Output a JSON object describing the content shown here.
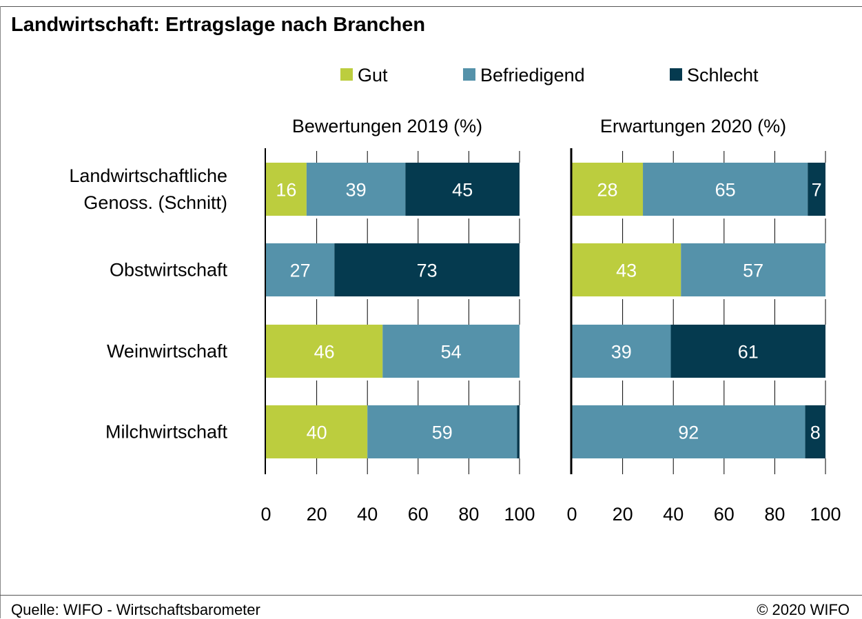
{
  "header": {
    "title": "Landwirtschaft: Ertragslage nach Branchen"
  },
  "footer": {
    "source": "Quelle: WIFO - Wirtschaftsbarometer",
    "copyright": "© 2020 WIFO"
  },
  "colors": {
    "gut": "#bccd3e",
    "befriedigend": "#5592aa",
    "schlecht": "#053a4f",
    "label_on_light": "#ffffff",
    "label_on_dark": "#ffffff"
  },
  "chart_data": {
    "type": "bar",
    "orientation": "horizontal",
    "stacked": true,
    "legend": [
      {
        "key": "gut",
        "name": "Gut"
      },
      {
        "key": "befriedigend",
        "name": "Befriedigend"
      },
      {
        "key": "schlecht",
        "name": "Schlecht"
      }
    ],
    "legend_placement": "top",
    "categories": [
      [
        "Landwirtschaftliche",
        "Genoss. (Schnitt)"
      ],
      [
        "Obstwirtschaft"
      ],
      [
        "Weinwirtschaft"
      ],
      [
        "Milchwirtschaft"
      ]
    ],
    "xlim": [
      0,
      100
    ],
    "xticks": [
      0,
      20,
      40,
      60,
      80,
      100
    ],
    "grid": false,
    "panels": [
      {
        "title": "Bewertungen 2019 (%)",
        "series": [
          {
            "key": "gut",
            "name": "Gut",
            "values": [
              16,
              0,
              46,
              40
            ],
            "labels": [
              "16",
              "",
              "46",
              "40"
            ]
          },
          {
            "key": "befriedigend",
            "name": "Befriedigend",
            "values": [
              39,
              27,
              54,
              59
            ],
            "labels": [
              "39",
              "27",
              "54",
              "59"
            ]
          },
          {
            "key": "schlecht",
            "name": "Schlecht",
            "values": [
              45,
              73,
              0,
              1
            ],
            "labels": [
              "45",
              "73",
              "",
              ""
            ]
          }
        ]
      },
      {
        "title": "Erwartungen 2020 (%)",
        "series": [
          {
            "key": "gut",
            "name": "Gut",
            "values": [
              28,
              43,
              0,
              0
            ],
            "labels": [
              "28",
              "43",
              "",
              ""
            ]
          },
          {
            "key": "befriedigend",
            "name": "Befriedigend",
            "values": [
              65,
              57,
              39,
              92
            ],
            "labels": [
              "65",
              "57",
              "39",
              "92"
            ]
          },
          {
            "key": "schlecht",
            "name": "Schlecht",
            "values": [
              7,
              0,
              61,
              8
            ],
            "labels": [
              "7",
              "",
              "61",
              "8"
            ]
          }
        ]
      }
    ]
  }
}
